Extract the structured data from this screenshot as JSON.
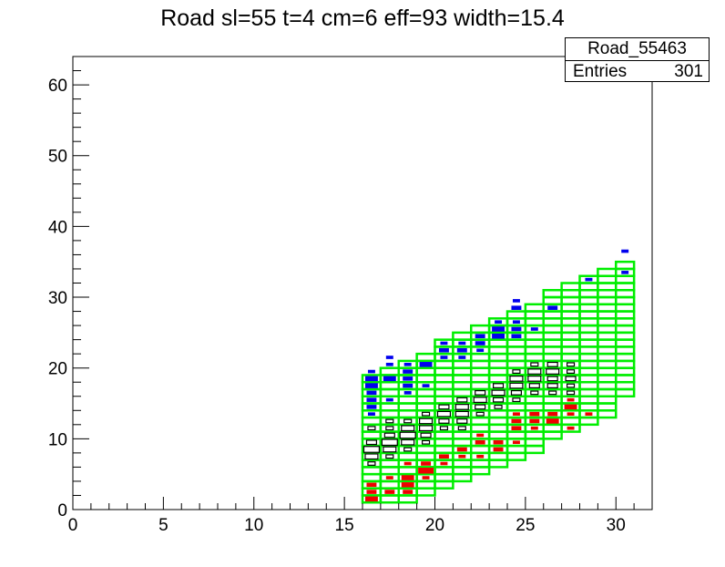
{
  "chart_data": {
    "type": "heatmap",
    "title": "Road sl=55 t=4 cm=6 eff=93 width=15.4",
    "xlabel": "",
    "ylabel": "",
    "xlim": [
      0,
      32
    ],
    "ylim": [
      0,
      64
    ],
    "xticks": [
      0,
      5,
      10,
      15,
      20,
      25,
      30
    ],
    "yticks": [
      0,
      10,
      20,
      30,
      40,
      50,
      60
    ],
    "grid": false,
    "stats": {
      "name": "Road_55463",
      "entries_label": "Entries",
      "entries": "301"
    },
    "colors": {
      "road_box": "#00ee00",
      "hits_upper": "#0000ee",
      "hits_center": "#000000",
      "hits_lower": "#ee0000"
    },
    "road_columns": [
      {
        "x": 16,
        "ylo": 1,
        "yhi": 19
      },
      {
        "x": 17,
        "ylo": 1,
        "yhi": 20
      },
      {
        "x": 18,
        "ylo": 1,
        "yhi": 21
      },
      {
        "x": 19,
        "ylo": 2,
        "yhi": 22
      },
      {
        "x": 20,
        "ylo": 3,
        "yhi": 24
      },
      {
        "x": 21,
        "ylo": 4,
        "yhi": 25
      },
      {
        "x": 22,
        "ylo": 5,
        "yhi": 26
      },
      {
        "x": 23,
        "ylo": 6,
        "yhi": 27
      },
      {
        "x": 24,
        "ylo": 7,
        "yhi": 28
      },
      {
        "x": 25,
        "ylo": 8,
        "yhi": 29
      },
      {
        "x": 26,
        "ylo": 10,
        "yhi": 31
      },
      {
        "x": 27,
        "ylo": 11,
        "yhi": 32
      },
      {
        "x": 28,
        "ylo": 12,
        "yhi": 33
      },
      {
        "x": 29,
        "ylo": 13,
        "yhi": 34
      },
      {
        "x": 30,
        "ylo": 16,
        "yhi": 35
      }
    ],
    "hits": [
      {
        "x": 16,
        "y": 1,
        "w": 3,
        "c": "lower"
      },
      {
        "x": 16,
        "y": 2,
        "w": 2,
        "c": "lower"
      },
      {
        "x": 16,
        "y": 3,
        "w": 2,
        "c": "lower"
      },
      {
        "x": 16,
        "y": 6,
        "w": 1,
        "c": "center"
      },
      {
        "x": 16,
        "y": 7,
        "w": 3,
        "c": "center"
      },
      {
        "x": 16,
        "y": 8,
        "w": 4,
        "c": "center"
      },
      {
        "x": 16,
        "y": 9,
        "w": 2,
        "c": "center"
      },
      {
        "x": 16,
        "y": 11,
        "w": 1,
        "c": "center"
      },
      {
        "x": 16,
        "y": 13,
        "w": 1,
        "c": "upper"
      },
      {
        "x": 16,
        "y": 14,
        "w": 2,
        "c": "upper"
      },
      {
        "x": 16,
        "y": 15,
        "w": 2,
        "c": "upper"
      },
      {
        "x": 16,
        "y": 16,
        "w": 2,
        "c": "upper"
      },
      {
        "x": 16,
        "y": 17,
        "w": 3,
        "c": "upper"
      },
      {
        "x": 16,
        "y": 18,
        "w": 3,
        "c": "upper"
      },
      {
        "x": 16,
        "y": 19,
        "w": 1,
        "c": "upper"
      },
      {
        "x": 17,
        "y": 2,
        "w": 2,
        "c": "lower"
      },
      {
        "x": 17,
        "y": 4,
        "w": 1,
        "c": "lower"
      },
      {
        "x": 17,
        "y": 7,
        "w": 1,
        "c": "center"
      },
      {
        "x": 17,
        "y": 8,
        "w": 3,
        "c": "center"
      },
      {
        "x": 17,
        "y": 9,
        "w": 4,
        "c": "center"
      },
      {
        "x": 17,
        "y": 10,
        "w": 2,
        "c": "center"
      },
      {
        "x": 17,
        "y": 11,
        "w": 1,
        "c": "center"
      },
      {
        "x": 17,
        "y": 12,
        "w": 1,
        "c": "center"
      },
      {
        "x": 17,
        "y": 15,
        "w": 1,
        "c": "upper"
      },
      {
        "x": 17,
        "y": 18,
        "w": 3,
        "c": "upper"
      },
      {
        "x": 17,
        "y": 20,
        "w": 1,
        "c": "upper"
      },
      {
        "x": 17,
        "y": 21,
        "w": 1,
        "c": "upper"
      },
      {
        "x": 18,
        "y": 2,
        "w": 2,
        "c": "lower"
      },
      {
        "x": 18,
        "y": 3,
        "w": 3,
        "c": "lower"
      },
      {
        "x": 18,
        "y": 4,
        "w": 3,
        "c": "lower"
      },
      {
        "x": 18,
        "y": 6,
        "w": 1,
        "c": "lower"
      },
      {
        "x": 18,
        "y": 8,
        "w": 1,
        "c": "center"
      },
      {
        "x": 18,
        "y": 9,
        "w": 3,
        "c": "center"
      },
      {
        "x": 18,
        "y": 10,
        "w": 4,
        "c": "center"
      },
      {
        "x": 18,
        "y": 11,
        "w": 3,
        "c": "center"
      },
      {
        "x": 18,
        "y": 12,
        "w": 1,
        "c": "center"
      },
      {
        "x": 18,
        "y": 16,
        "w": 1,
        "c": "upper"
      },
      {
        "x": 18,
        "y": 17,
        "w": 2,
        "c": "upper"
      },
      {
        "x": 18,
        "y": 18,
        "w": 2,
        "c": "upper"
      },
      {
        "x": 18,
        "y": 19,
        "w": 2,
        "c": "upper"
      },
      {
        "x": 18,
        "y": 20,
        "w": 1,
        "c": "upper"
      },
      {
        "x": 19,
        "y": 4,
        "w": 1,
        "c": "lower"
      },
      {
        "x": 19,
        "y": 5,
        "w": 4,
        "c": "lower"
      },
      {
        "x": 19,
        "y": 6,
        "w": 2,
        "c": "lower"
      },
      {
        "x": 19,
        "y": 9,
        "w": 1,
        "c": "center"
      },
      {
        "x": 19,
        "y": 10,
        "w": 2,
        "c": "center"
      },
      {
        "x": 19,
        "y": 11,
        "w": 3,
        "c": "center"
      },
      {
        "x": 19,
        "y": 12,
        "w": 3,
        "c": "center"
      },
      {
        "x": 19,
        "y": 13,
        "w": 1,
        "c": "center"
      },
      {
        "x": 19,
        "y": 17,
        "w": 1,
        "c": "upper"
      },
      {
        "x": 19,
        "y": 20,
        "w": 3,
        "c": "upper"
      },
      {
        "x": 20,
        "y": 6,
        "w": 1,
        "c": "lower"
      },
      {
        "x": 20,
        "y": 7,
        "w": 2,
        "c": "lower"
      },
      {
        "x": 20,
        "y": 11,
        "w": 1,
        "c": "center"
      },
      {
        "x": 20,
        "y": 12,
        "w": 2,
        "c": "center"
      },
      {
        "x": 20,
        "y": 13,
        "w": 3,
        "c": "center"
      },
      {
        "x": 20,
        "y": 14,
        "w": 2,
        "c": "center"
      },
      {
        "x": 20,
        "y": 21,
        "w": 1,
        "c": "upper"
      },
      {
        "x": 20,
        "y": 22,
        "w": 2,
        "c": "upper"
      },
      {
        "x": 20,
        "y": 23,
        "w": 1,
        "c": "upper"
      },
      {
        "x": 21,
        "y": 7,
        "w": 1,
        "c": "lower"
      },
      {
        "x": 21,
        "y": 8,
        "w": 2,
        "c": "lower"
      },
      {
        "x": 21,
        "y": 11,
        "w": 1,
        "c": "center"
      },
      {
        "x": 21,
        "y": 12,
        "w": 2,
        "c": "center"
      },
      {
        "x": 21,
        "y": 13,
        "w": 3,
        "c": "center"
      },
      {
        "x": 21,
        "y": 14,
        "w": 3,
        "c": "center"
      },
      {
        "x": 21,
        "y": 15,
        "w": 2,
        "c": "center"
      },
      {
        "x": 21,
        "y": 21,
        "w": 1,
        "c": "upper"
      },
      {
        "x": 21,
        "y": 22,
        "w": 2,
        "c": "upper"
      },
      {
        "x": 21,
        "y": 23,
        "w": 1,
        "c": "upper"
      },
      {
        "x": 22,
        "y": 7,
        "w": 1,
        "c": "lower"
      },
      {
        "x": 22,
        "y": 9,
        "w": 2,
        "c": "lower"
      },
      {
        "x": 22,
        "y": 10,
        "w": 1,
        "c": "lower"
      },
      {
        "x": 22,
        "y": 13,
        "w": 1,
        "c": "center"
      },
      {
        "x": 22,
        "y": 14,
        "w": 2,
        "c": "center"
      },
      {
        "x": 22,
        "y": 15,
        "w": 3,
        "c": "center"
      },
      {
        "x": 22,
        "y": 16,
        "w": 2,
        "c": "center"
      },
      {
        "x": 22,
        "y": 22,
        "w": 1,
        "c": "upper"
      },
      {
        "x": 22,
        "y": 23,
        "w": 2,
        "c": "upper"
      },
      {
        "x": 22,
        "y": 24,
        "w": 2,
        "c": "upper"
      },
      {
        "x": 23,
        "y": 8,
        "w": 2,
        "c": "lower"
      },
      {
        "x": 23,
        "y": 9,
        "w": 2,
        "c": "lower"
      },
      {
        "x": 23,
        "y": 14,
        "w": 1,
        "c": "center"
      },
      {
        "x": 23,
        "y": 15,
        "w": 2,
        "c": "center"
      },
      {
        "x": 23,
        "y": 16,
        "w": 3,
        "c": "center"
      },
      {
        "x": 23,
        "y": 17,
        "w": 2,
        "c": "center"
      },
      {
        "x": 23,
        "y": 24,
        "w": 3,
        "c": "upper"
      },
      {
        "x": 23,
        "y": 25,
        "w": 3,
        "c": "upper"
      },
      {
        "x": 23,
        "y": 26,
        "w": 1,
        "c": "upper"
      },
      {
        "x": 24,
        "y": 9,
        "w": 1,
        "c": "lower"
      },
      {
        "x": 24,
        "y": 11,
        "w": 2,
        "c": "lower"
      },
      {
        "x": 24,
        "y": 12,
        "w": 2,
        "c": "lower"
      },
      {
        "x": 24,
        "y": 13,
        "w": 1,
        "c": "lower"
      },
      {
        "x": 24,
        "y": 15,
        "w": 1,
        "c": "center"
      },
      {
        "x": 24,
        "y": 16,
        "w": 2,
        "c": "center"
      },
      {
        "x": 24,
        "y": 17,
        "w": 3,
        "c": "center"
      },
      {
        "x": 24,
        "y": 18,
        "w": 3,
        "c": "center"
      },
      {
        "x": 24,
        "y": 19,
        "w": 1,
        "c": "center"
      },
      {
        "x": 24,
        "y": 24,
        "w": 2,
        "c": "upper"
      },
      {
        "x": 24,
        "y": 25,
        "w": 2,
        "c": "upper"
      },
      {
        "x": 24,
        "y": 26,
        "w": 1,
        "c": "upper"
      },
      {
        "x": 24,
        "y": 28,
        "w": 2,
        "c": "upper"
      },
      {
        "x": 24,
        "y": 29,
        "w": 1,
        "c": "upper"
      },
      {
        "x": 25,
        "y": 11,
        "w": 1,
        "c": "lower"
      },
      {
        "x": 25,
        "y": 12,
        "w": 2,
        "c": "lower"
      },
      {
        "x": 25,
        "y": 13,
        "w": 2,
        "c": "lower"
      },
      {
        "x": 25,
        "y": 16,
        "w": 1,
        "c": "center"
      },
      {
        "x": 25,
        "y": 17,
        "w": 2,
        "c": "center"
      },
      {
        "x": 25,
        "y": 18,
        "w": 3,
        "c": "center"
      },
      {
        "x": 25,
        "y": 19,
        "w": 3,
        "c": "center"
      },
      {
        "x": 25,
        "y": 20,
        "w": 1,
        "c": "center"
      },
      {
        "x": 25,
        "y": 25,
        "w": 1,
        "c": "upper"
      },
      {
        "x": 26,
        "y": 12,
        "w": 3,
        "c": "lower"
      },
      {
        "x": 26,
        "y": 13,
        "w": 2,
        "c": "lower"
      },
      {
        "x": 26,
        "y": 16,
        "w": 1,
        "c": "center"
      },
      {
        "x": 26,
        "y": 17,
        "w": 2,
        "c": "center"
      },
      {
        "x": 26,
        "y": 18,
        "w": 2,
        "c": "center"
      },
      {
        "x": 26,
        "y": 19,
        "w": 3,
        "c": "center"
      },
      {
        "x": 26,
        "y": 20,
        "w": 2,
        "c": "center"
      },
      {
        "x": 26,
        "y": 28,
        "w": 2,
        "c": "upper"
      },
      {
        "x": 27,
        "y": 11,
        "w": 1,
        "c": "lower"
      },
      {
        "x": 27,
        "y": 13,
        "w": 1,
        "c": "lower"
      },
      {
        "x": 27,
        "y": 14,
        "w": 3,
        "c": "lower"
      },
      {
        "x": 27,
        "y": 15,
        "w": 1,
        "c": "lower"
      },
      {
        "x": 27,
        "y": 16,
        "w": 1,
        "c": "center"
      },
      {
        "x": 27,
        "y": 17,
        "w": 1,
        "c": "center"
      },
      {
        "x": 27,
        "y": 18,
        "w": 2,
        "c": "center"
      },
      {
        "x": 27,
        "y": 19,
        "w": 1,
        "c": "center"
      },
      {
        "x": 27,
        "y": 20,
        "w": 1,
        "c": "center"
      },
      {
        "x": 28,
        "y": 13,
        "w": 1,
        "c": "lower"
      },
      {
        "x": 28,
        "y": 32,
        "w": 1,
        "c": "upper"
      },
      {
        "x": 30,
        "y": 33,
        "w": 1,
        "c": "upper"
      },
      {
        "x": 30,
        "y": 36,
        "w": 1,
        "c": "upper"
      }
    ]
  }
}
